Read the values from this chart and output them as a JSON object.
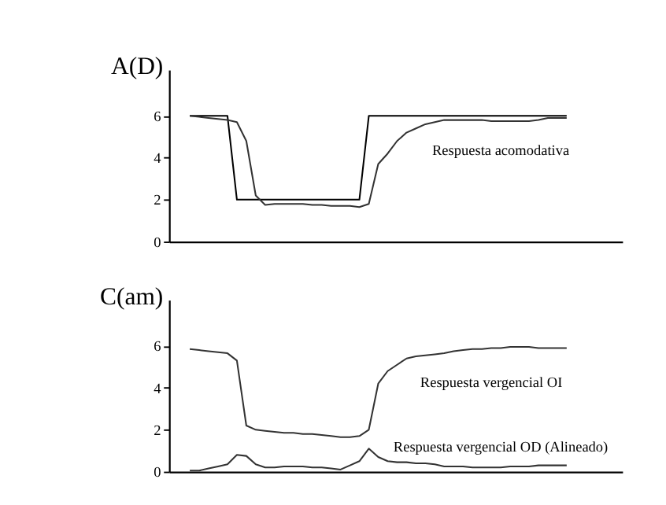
{
  "chart_data": [
    {
      "type": "line",
      "ylabel": "A(D)",
      "categories": [
        null,
        null,
        null,
        null,
        null,
        null,
        null,
        null,
        null,
        null,
        null,
        null,
        null,
        null,
        null,
        null,
        null,
        null,
        null,
        null,
        null,
        null,
        null,
        null,
        null,
        null,
        null,
        null,
        null,
        null,
        null,
        null,
        null,
        null,
        null,
        null,
        null,
        null,
        null,
        null,
        null
      ],
      "series": [
        {
          "type": "step",
          "color": "#000000",
          "values": [
            6,
            6,
            6,
            6,
            6,
            2,
            2,
            2,
            2,
            2,
            2,
            2,
            2,
            2,
            2,
            2,
            2,
            2,
            2,
            6,
            6,
            6,
            6,
            6,
            6,
            6,
            6,
            6,
            6,
            6,
            6,
            6,
            6,
            6,
            6,
            6,
            6,
            6,
            6,
            6,
            6
          ]
        },
        {
          "name": "Respuesta acomodativa",
          "color": "#333333",
          "values": [
            6.0,
            5.95,
            5.9,
            5.85,
            5.8,
            5.7,
            4.8,
            2.2,
            1.75,
            1.8,
            1.8,
            1.8,
            1.8,
            1.75,
            1.75,
            1.7,
            1.7,
            1.7,
            1.65,
            1.8,
            3.7,
            4.2,
            4.8,
            5.2,
            5.4,
            5.6,
            5.7,
            5.8,
            5.8,
            5.8,
            5.8,
            5.8,
            5.75,
            5.75,
            5.75,
            5.75,
            5.75,
            5.8,
            5.9,
            5.9,
            5.9
          ]
        }
      ],
      "ylim": [
        0,
        8.2
      ],
      "yticks": [
        0,
        2,
        4,
        6
      ],
      "tick_labels": "y",
      "grid": false
    },
    {
      "type": "line",
      "ylabel": "C(am)",
      "categories": [
        null,
        null,
        null,
        null,
        null,
        null,
        null,
        null,
        null,
        null,
        null,
        null,
        null,
        null,
        null,
        null,
        null,
        null,
        null,
        null,
        null,
        null,
        null,
        null,
        null,
        null,
        null,
        null,
        null,
        null,
        null,
        null,
        null,
        null,
        null,
        null,
        null,
        null,
        null,
        null,
        null
      ],
      "series": [
        {
          "name": "Respuesta vergencial OI",
          "color": "#333333",
          "values": [
            5.85,
            5.8,
            5.75,
            5.7,
            5.65,
            5.3,
            2.2,
            2.0,
            1.95,
            1.9,
            1.85,
            1.85,
            1.8,
            1.8,
            1.75,
            1.7,
            1.65,
            1.65,
            1.7,
            2.0,
            4.2,
            4.8,
            5.1,
            5.4,
            5.5,
            5.55,
            5.6,
            5.65,
            5.75,
            5.8,
            5.85,
            5.85,
            5.9,
            5.9,
            5.95,
            5.95,
            5.95,
            5.9,
            5.9,
            5.9,
            5.9
          ]
        },
        {
          "name": "Respuesta vergencial OD (Alineado)",
          "color": "#333333",
          "values": [
            0.05,
            0.05,
            0.15,
            0.25,
            0.35,
            0.8,
            0.75,
            0.35,
            0.2,
            0.2,
            0.25,
            0.25,
            0.25,
            0.2,
            0.2,
            0.15,
            0.1,
            0.3,
            0.5,
            1.1,
            0.7,
            0.5,
            0.45,
            0.45,
            0.4,
            0.4,
            0.35,
            0.25,
            0.25,
            0.25,
            0.2,
            0.2,
            0.2,
            0.2,
            0.25,
            0.25,
            0.25,
            0.3,
            0.3,
            0.3,
            0.3
          ]
        }
      ],
      "ylim": [
        0,
        8.2
      ],
      "yticks": [
        0,
        2,
        4,
        6
      ],
      "tick_labels": "y",
      "grid": false
    }
  ]
}
